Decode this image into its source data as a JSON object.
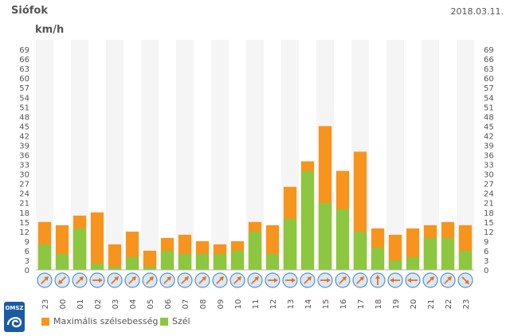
{
  "header": {
    "station": "Siófok",
    "date": "2018.03.11.",
    "unit": "km/h"
  },
  "logo": {
    "text": "OMSZ"
  },
  "colors": {
    "max": "#f7941d",
    "wind": "#8dc63f",
    "bg_light": "#f5f5f5",
    "bg_white": "#ffffff"
  },
  "legend": [
    {
      "label": "Maximális szélsebesség",
      "color": "#f7941d"
    },
    {
      "label": "Szél",
      "color": "#8dc63f"
    }
  ],
  "chart_data": {
    "type": "bar",
    "categories": [
      "23",
      "00",
      "01",
      "02",
      "03",
      "04",
      "05",
      "06",
      "07",
      "08",
      "09",
      "10",
      "11",
      "12",
      "13",
      "14",
      "15",
      "16",
      "17",
      "18",
      "19",
      "20",
      "21",
      "22",
      "23"
    ],
    "series": [
      {
        "name": "Maximális szélsebesség",
        "values": [
          15,
          14,
          17,
          18,
          8,
          12,
          6,
          10,
          11,
          9,
          8,
          9,
          15,
          14,
          26,
          34,
          45,
          31,
          37,
          13,
          11,
          13,
          14,
          15,
          14
        ]
      },
      {
        "name": "Szél",
        "values": [
          8,
          5,
          13,
          2,
          1,
          4,
          1,
          6,
          5,
          5,
          5,
          6,
          12,
          5,
          16,
          31,
          21,
          19,
          12,
          7,
          3,
          4,
          10,
          10,
          6
        ]
      }
    ],
    "wind_direction_icons": [
      "arrow-ne",
      "arrow-sw",
      "arrow-ne",
      "arrow-e",
      "arrow-ne",
      "arrow-ne",
      "arrow-ne",
      "arrow-ne",
      "arrow-ne",
      "arrow-ne",
      "arrow-ne",
      "arrow-ne",
      "arrow-ne",
      "arrow-e",
      "arrow-e",
      "arrow-ne",
      "arrow-e",
      "arrow-ne",
      "arrow-ne",
      "arrow-n",
      "arrow-w",
      "arrow-w",
      "arrow-ne",
      "arrow-ne",
      "arrow-se"
    ],
    "yticks": [
      0,
      3,
      6,
      9,
      12,
      15,
      18,
      21,
      24,
      27,
      30,
      33,
      36,
      39,
      42,
      45,
      48,
      51,
      54,
      57,
      60,
      63,
      66,
      69
    ],
    "ylim": [
      0,
      72
    ],
    "grid": "alternating columns",
    "legend_position": "bottom-left"
  }
}
